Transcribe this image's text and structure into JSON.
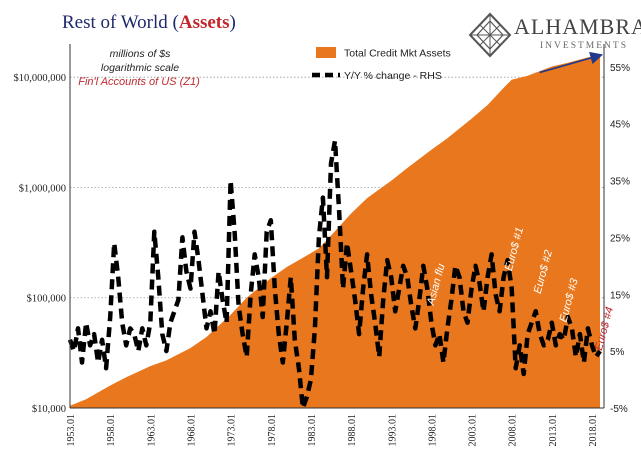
{
  "header": {
    "title_prefix": "Rest of World (",
    "title_accent": "Assets",
    "title_suffix": ")",
    "units_line1": "millions of $s",
    "units_line2": "logarithmic scale",
    "source": "Fin'l Accounts of US (Z1)"
  },
  "logo": {
    "name": "ALHAMBRA",
    "subtitle": "INVESTMENTS",
    "icon": "diamond-lattice-icon"
  },
  "colors": {
    "area": "#e8771d",
    "line": "#000000",
    "title": "#1f2a6b",
    "accent": "#c0282e",
    "annotation_white": "#ffffff",
    "trend_arrow": "#1f3a8a"
  },
  "chart_data": {
    "type": "area",
    "x_tick_labels": [
      "1953.01",
      "1958.01",
      "1963.01",
      "1968.01",
      "1973.01",
      "1978.01",
      "1983.01",
      "1988.01",
      "1993.01",
      "1998.01",
      "2003.01",
      "2008.01",
      "2013.01",
      "2018.01"
    ],
    "x_range": [
      1953,
      2019.5
    ],
    "y_left": {
      "scale": "log",
      "range": [
        10000,
        20000000
      ],
      "tick_values": [
        10000,
        100000,
        1000000,
        10000000
      ],
      "tick_labels": [
        "$10,000",
        "$100,000",
        "$1,000,000",
        "$10,000,000"
      ]
    },
    "y_right": {
      "range": [
        -5,
        59
      ],
      "tick_values": [
        -5,
        5,
        15,
        25,
        35,
        45,
        55
      ],
      "tick_labels": [
        "-5%",
        "5%",
        "15%",
        "25%",
        "35%",
        "45%",
        "55%"
      ]
    },
    "grid": "horizontal dotted at left-axis ticks",
    "legend_position": "top-center",
    "series": [
      {
        "name": "Total Credit Mkt Assets",
        "type": "area",
        "axis": "left",
        "x": [
          1953,
          1955,
          1958,
          1960,
          1963,
          1965,
          1968,
          1970,
          1973,
          1975,
          1978,
          1980,
          1982,
          1984,
          1986,
          1988,
          1990,
          1993,
          1995,
          1998,
          2000,
          2003,
          2005,
          2007,
          2008,
          2010,
          2013,
          2015,
          2018,
          2019
        ],
        "values": [
          10500,
          12000,
          16000,
          19000,
          24000,
          27000,
          35000,
          44000,
          70000,
          100000,
          150000,
          190000,
          230000,
          280000,
          400000,
          580000,
          800000,
          1150000,
          1500000,
          2200000,
          2800000,
          4200000,
          5600000,
          8000000,
          9500000,
          10300000,
          12500000,
          13500000,
          15500000,
          15800000
        ]
      },
      {
        "name": "Y/Y % change - RHS",
        "type": "line",
        "style": "dashed",
        "axis": "right",
        "x": [
          1953,
          1953.5,
          1954,
          1954.5,
          1955,
          1955.5,
          1956,
          1956.5,
          1957,
          1957.5,
          1958,
          1958.5,
          1959,
          1959.5,
          1960,
          1960.5,
          1961,
          1961.5,
          1962,
          1962.5,
          1963,
          1963.5,
          1964,
          1964.5,
          1965,
          1965.5,
          1966,
          1966.5,
          1967,
          1967.5,
          1968,
          1968.5,
          1969,
          1969.5,
          1970,
          1970.5,
          1971,
          1971.5,
          1972,
          1972.5,
          1973,
          1973.5,
          1974,
          1974.5,
          1975,
          1975.5,
          1976,
          1976.5,
          1977,
          1977.5,
          1978,
          1978.5,
          1979,
          1979.5,
          1980,
          1980.5,
          1981,
          1981.5,
          1982,
          1982.5,
          1983,
          1983.5,
          1984,
          1984.5,
          1985,
          1985.5,
          1986,
          1986.5,
          1987,
          1987.5,
          1988,
          1988.5,
          1989,
          1989.5,
          1990,
          1990.5,
          1991,
          1991.5,
          1992,
          1992.5,
          1993,
          1993.5,
          1994,
          1994.5,
          1995,
          1995.5,
          1996,
          1996.5,
          1997,
          1997.5,
          1998,
          1998.5,
          1999,
          1999.5,
          2000,
          2000.5,
          2001,
          2001.5,
          2002,
          2002.5,
          2003,
          2003.5,
          2004,
          2004.5,
          2005,
          2005.5,
          2006,
          2006.5,
          2007,
          2007.5,
          2008,
          2008.5,
          2009,
          2009.5,
          2010,
          2010.5,
          2011,
          2011.5,
          2012,
          2012.5,
          2013,
          2013.5,
          2014,
          2014.5,
          2015,
          2015.5,
          2016,
          2016.5,
          2017,
          2017.5,
          2018,
          2018.5,
          2019
        ],
        "values": [
          7,
          5,
          9,
          3,
          10,
          6,
          8,
          3,
          7,
          2,
          11,
          24,
          18,
          10,
          6,
          9,
          8,
          5,
          9,
          6,
          10,
          26,
          18,
          8,
          5,
          10,
          12,
          14,
          25,
          19,
          16,
          26,
          21,
          15,
          9,
          12,
          8,
          19,
          14,
          10,
          35,
          26,
          13,
          8,
          4,
          15,
          22,
          18,
          11,
          26,
          28,
          16,
          8,
          3,
          10,
          18,
          7,
          2,
          -5,
          -3,
          0,
          9,
          25,
          32,
          18,
          38,
          42,
          30,
          16,
          24,
          19,
          14,
          8,
          16,
          22,
          15,
          10,
          4,
          14,
          21,
          18,
          12,
          16,
          20,
          18,
          13,
          9,
          14,
          20,
          16,
          10,
          6,
          8,
          3,
          9,
          14,
          20,
          18,
          12,
          10,
          16,
          20,
          17,
          12,
          18,
          22,
          15,
          12,
          18,
          21,
          16,
          2,
          6,
          1,
          8,
          10,
          12,
          8,
          6,
          7,
          10,
          6,
          8,
          7,
          11,
          9,
          4,
          8,
          3,
          9,
          6,
          4,
          5
        ]
      }
    ],
    "annotations": [
      {
        "text": "Asian flu",
        "x": 1998.3,
        "y_pct": 13,
        "color": "#ffffff"
      },
      {
        "text": "Euro$ #1",
        "x": 2008.0,
        "y_pct": 19,
        "color": "#ffffff"
      },
      {
        "text": "Euro$ #2",
        "x": 2011.6,
        "y_pct": 15,
        "color": "#ffffff"
      },
      {
        "text": "Euro$ #3",
        "x": 2014.8,
        "y_pct": 10,
        "color": "#ffffff"
      },
      {
        "text": "Euro$ #4",
        "x": 2019.2,
        "y_pct": 5,
        "color": "#c0282e"
      }
    ],
    "trend_arrow": {
      "from": [
        2011.5,
        54
      ],
      "to": [
        2019.0,
        57
      ]
    }
  }
}
